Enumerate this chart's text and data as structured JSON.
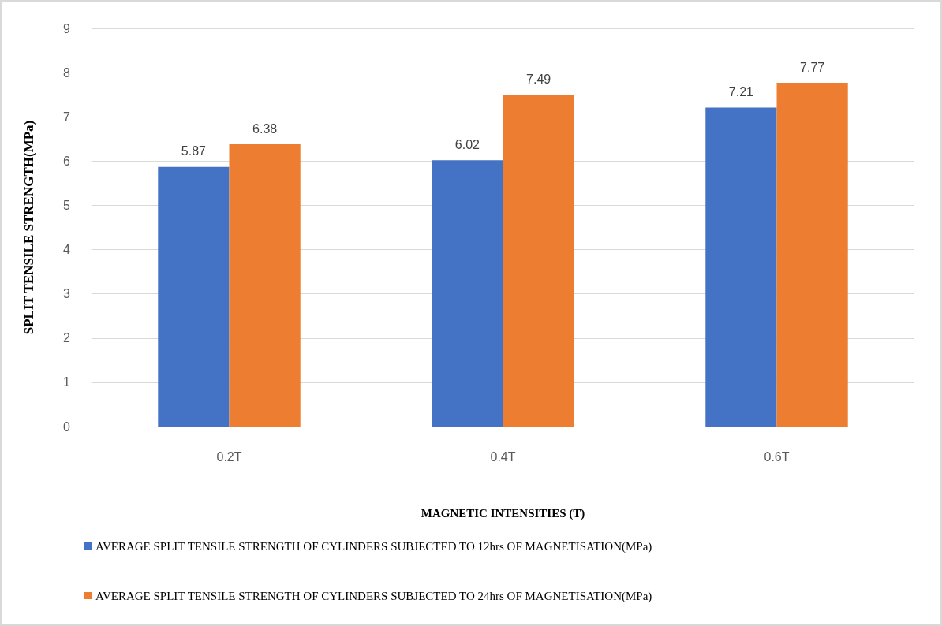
{
  "chart_data": {
    "type": "bar",
    "xlabel": "MAGNETIC INTENSITIES (T)",
    "ylabel": "SPLIT TENSILE STRENGTH(MPa)",
    "categories": [
      "0.2T",
      "0.4T",
      "0.6T"
    ],
    "series": [
      {
        "name": "AVERAGE SPLIT TENSILE STRENGTH OF CYLINDERS SUBJECTED TO 12hrs OF MAGNETISATION(MPa)",
        "color": "#4472c4",
        "values": [
          5.87,
          6.02,
          7.21
        ]
      },
      {
        "name": "AVERAGE SPLIT TENSILE STRENGTH OF CYLINDERS SUBJECTED TO 24hrs OF MAGNETISATION(MPa)",
        "color": "#ed7d31",
        "values": [
          6.38,
          7.49,
          7.77
        ]
      }
    ],
    "ylim": [
      0,
      9
    ],
    "yticks": [
      0,
      1,
      2,
      3,
      4,
      5,
      6,
      7,
      8,
      9
    ],
    "grid": "y",
    "legend": "bottom",
    "data_labels": true
  }
}
